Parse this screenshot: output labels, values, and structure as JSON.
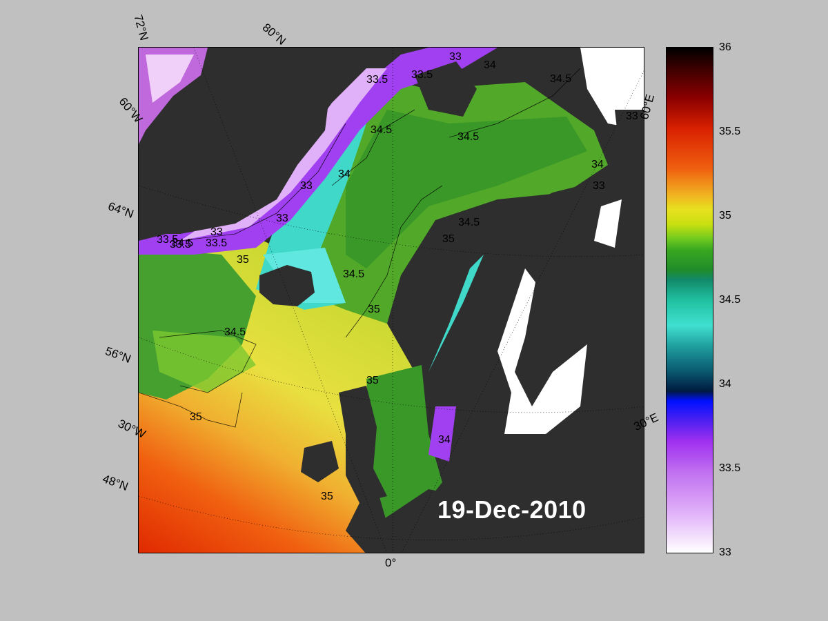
{
  "date": "19-Dec-2010",
  "map": {
    "lat_labels": [
      "72°N",
      "80°N",
      "60°N",
      "64°N",
      "56°N",
      "48°N"
    ],
    "lon_labels": [
      "60°W",
      "30°W",
      "0°",
      "30°E",
      "60°E"
    ],
    "contour_labels": [
      "33.5",
      "33.5",
      "33",
      "34",
      "34.5",
      "34.5",
      "34",
      "33",
      "33",
      "33",
      "33.5",
      "33.5",
      "34.5",
      "34.5",
      "35",
      "34.5",
      "35",
      "34.5",
      "35",
      "35",
      "35",
      "35",
      "34",
      "34",
      "33",
      "33.5",
      "34.5",
      "33"
    ]
  },
  "colorbar": {
    "ticks": [
      "36",
      "35.5",
      "35",
      "34.5",
      "34",
      "33.5",
      "33"
    ]
  },
  "colors": {
    "background": "#c0c0c0",
    "land": "#2e2e2e",
    "ice": "#ffffff",
    "label_text": "#000000",
    "date_text": "#ffffff"
  }
}
